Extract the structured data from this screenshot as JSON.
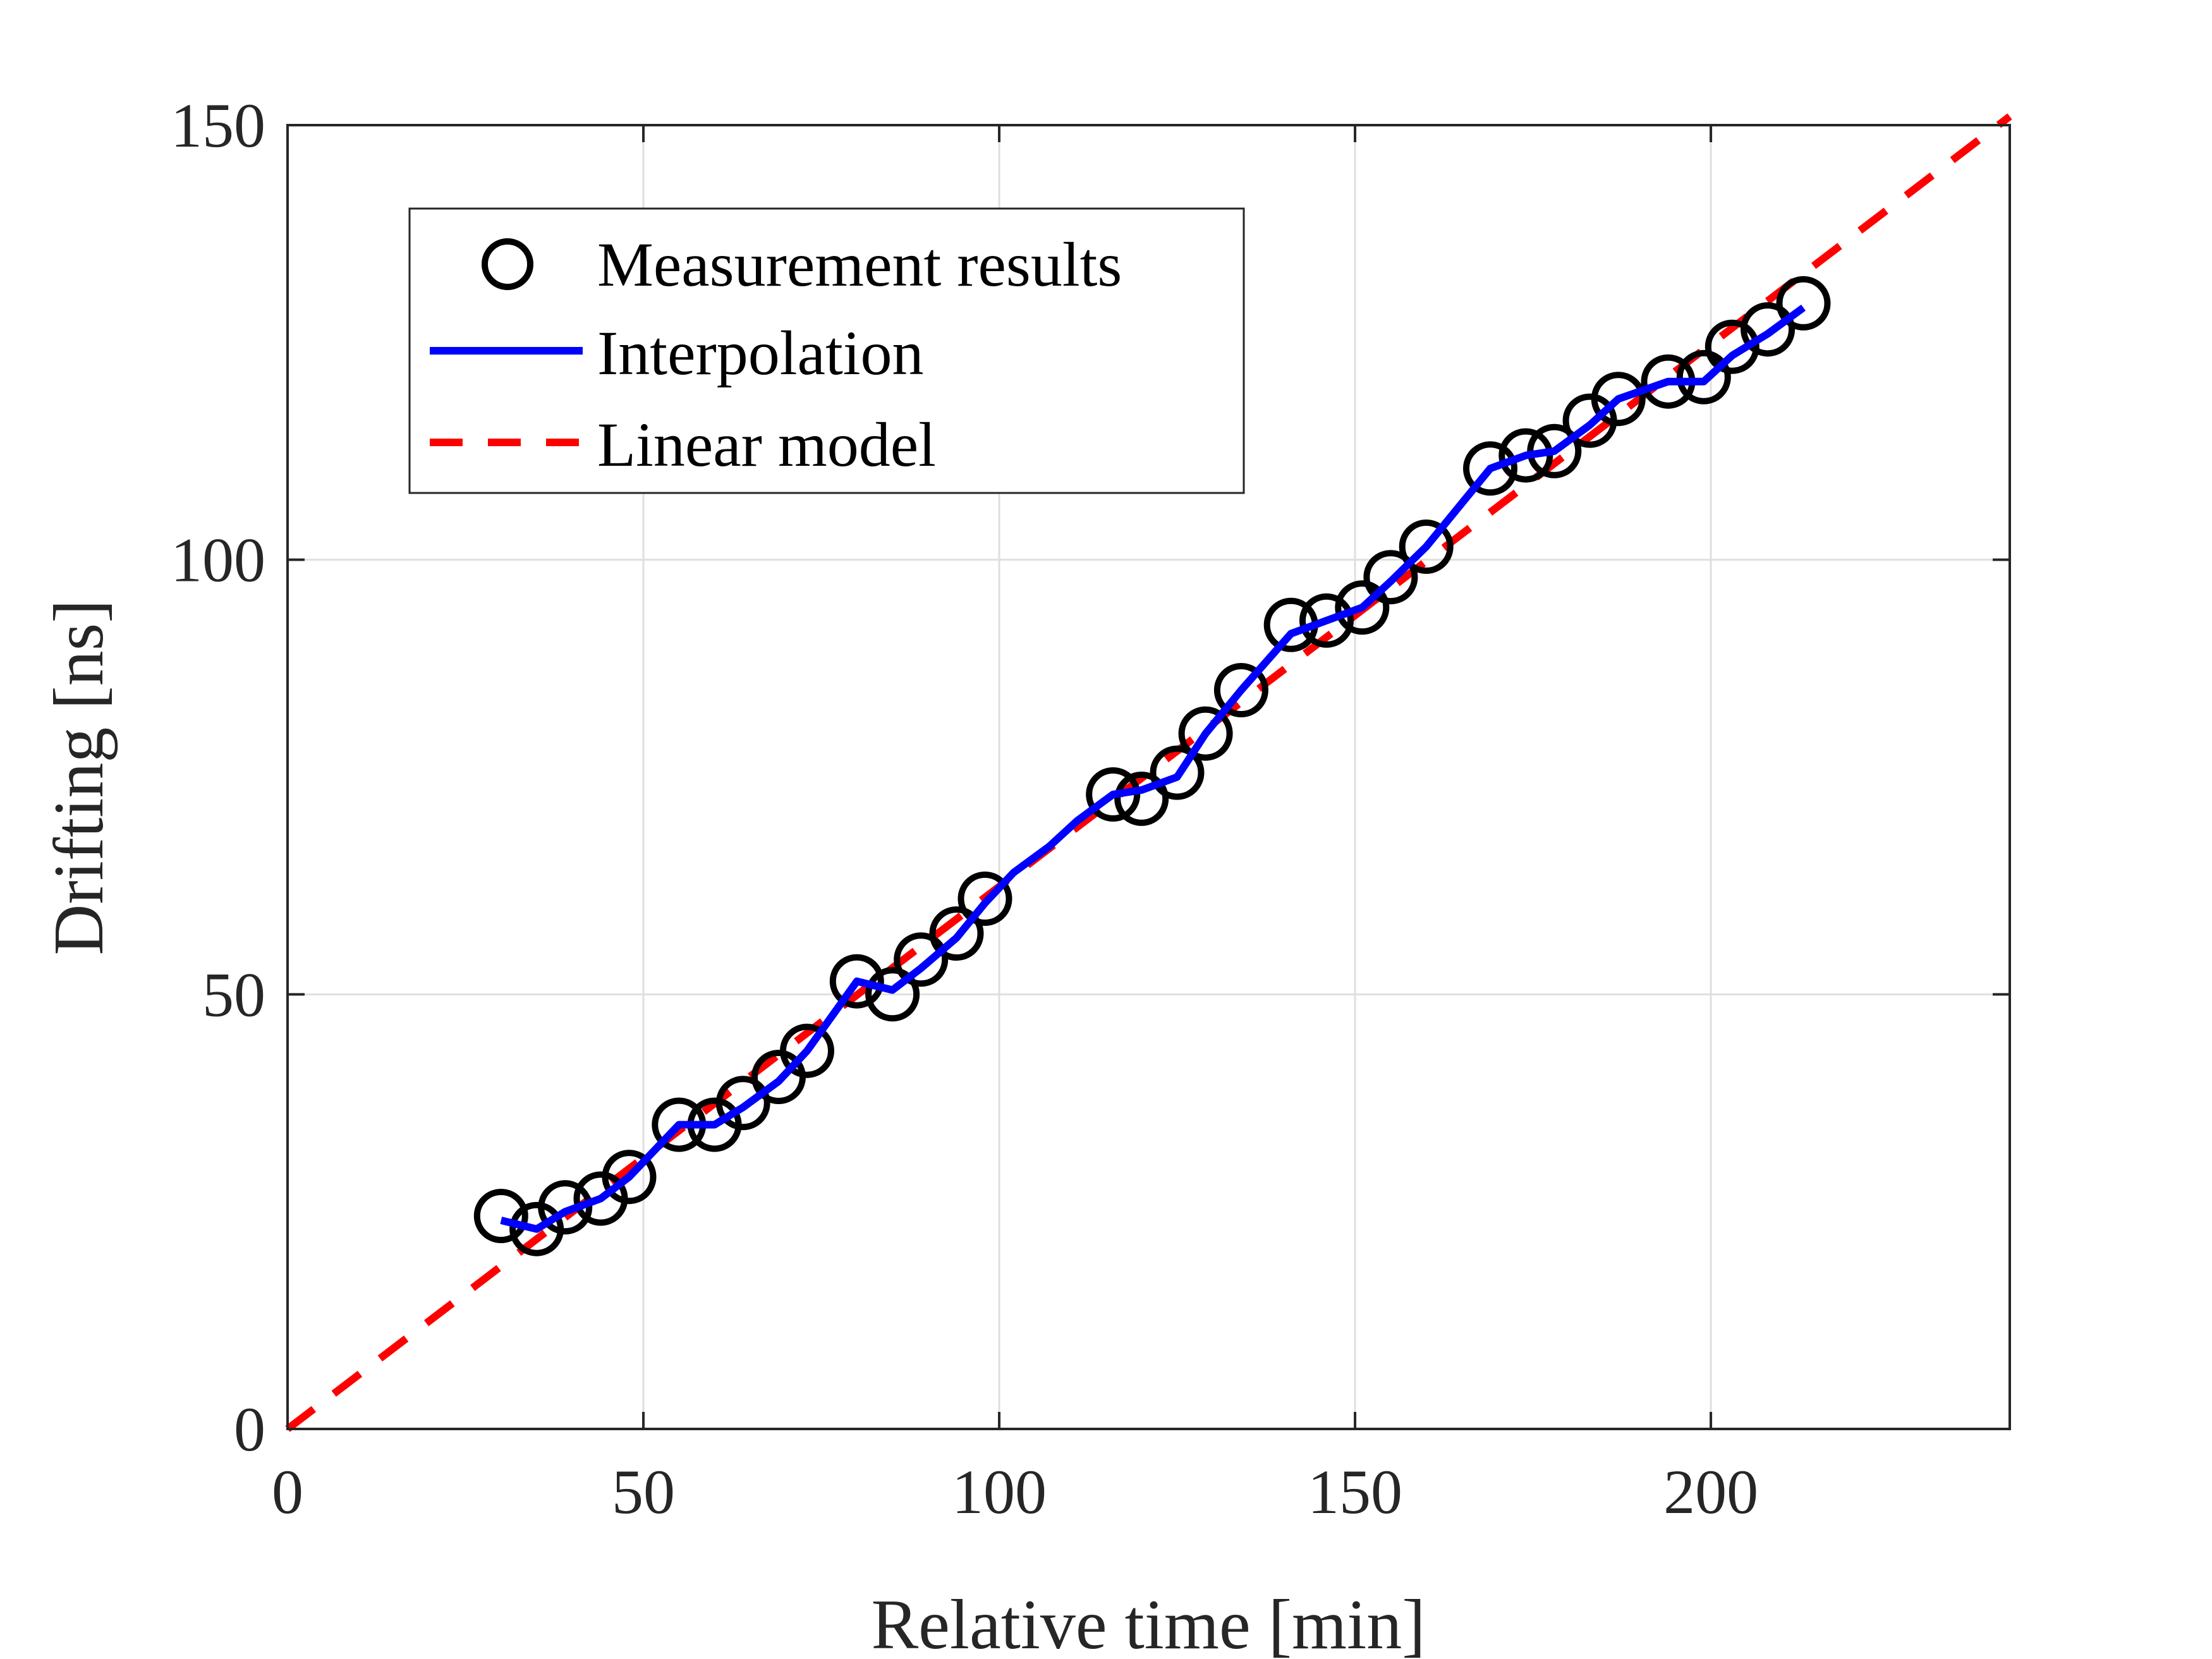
{
  "chart_data": {
    "type": "line",
    "title": "",
    "xlabel": "Relative time [min]",
    "ylabel": "Drifting [ns]",
    "xlim": [
      0,
      242
    ],
    "ylim": [
      0,
      150
    ],
    "xticks": [
      "0",
      "50",
      "100",
      "150",
      "200"
    ],
    "yticks": [
      "0",
      "50",
      "100",
      "150"
    ],
    "xtick_values": [
      0,
      50,
      100,
      150,
      200
    ],
    "ytick_values": [
      0,
      50,
      100,
      150
    ],
    "grid": true,
    "legend_position": "top-left",
    "series": [
      {
        "name": "Measurement results",
        "style": "markers",
        "marker": "circle",
        "color": "#000000",
        "x": [
          30,
          35,
          39,
          44,
          48,
          55,
          60,
          64,
          69,
          73,
          80,
          85,
          89,
          94,
          98,
          116,
          120,
          125,
          129,
          134,
          141,
          146,
          151,
          155,
          160,
          169,
          174,
          178,
          183,
          187,
          194,
          199,
          203,
          208,
          213
        ],
        "y": [
          24.5,
          23,
          25.5,
          26.5,
          29,
          35,
          35,
          37.5,
          40.5,
          43.5,
          51.5,
          50,
          54,
          57,
          61,
          73,
          72.5,
          75.5,
          80,
          85,
          92.5,
          93,
          94.5,
          98,
          101.5,
          110.5,
          112,
          112.5,
          116,
          118.5,
          120.5,
          121,
          124.5,
          126.5,
          129.5
        ]
      },
      {
        "name": "Interpolation",
        "style": "solid",
        "color": "#0000ff",
        "x": [
          30,
          35,
          39,
          44,
          48,
          55,
          60,
          64,
          69,
          73,
          80,
          85,
          89,
          94,
          98,
          102,
          107,
          111,
          116,
          120,
          125,
          129,
          134,
          141,
          146,
          151,
          155,
          160,
          169,
          174,
          178,
          183,
          187,
          194,
          199,
          203,
          208,
          213
        ],
        "y": [
          24,
          23,
          25,
          26.5,
          29,
          35,
          35,
          37,
          40,
          43.5,
          51.5,
          50.5,
          53,
          56.5,
          60.5,
          64,
          67,
          70,
          73,
          73.5,
          75,
          80,
          85,
          91.5,
          93,
          94.5,
          97.5,
          101.5,
          110.5,
          112,
          112.5,
          115.5,
          118.5,
          120.5,
          120.5,
          123.5,
          126,
          129
        ]
      },
      {
        "name": "Linear model",
        "style": "dashed",
        "color": "#ff0000",
        "x": [
          0,
          242
        ],
        "y": [
          0,
          151
        ]
      }
    ]
  }
}
